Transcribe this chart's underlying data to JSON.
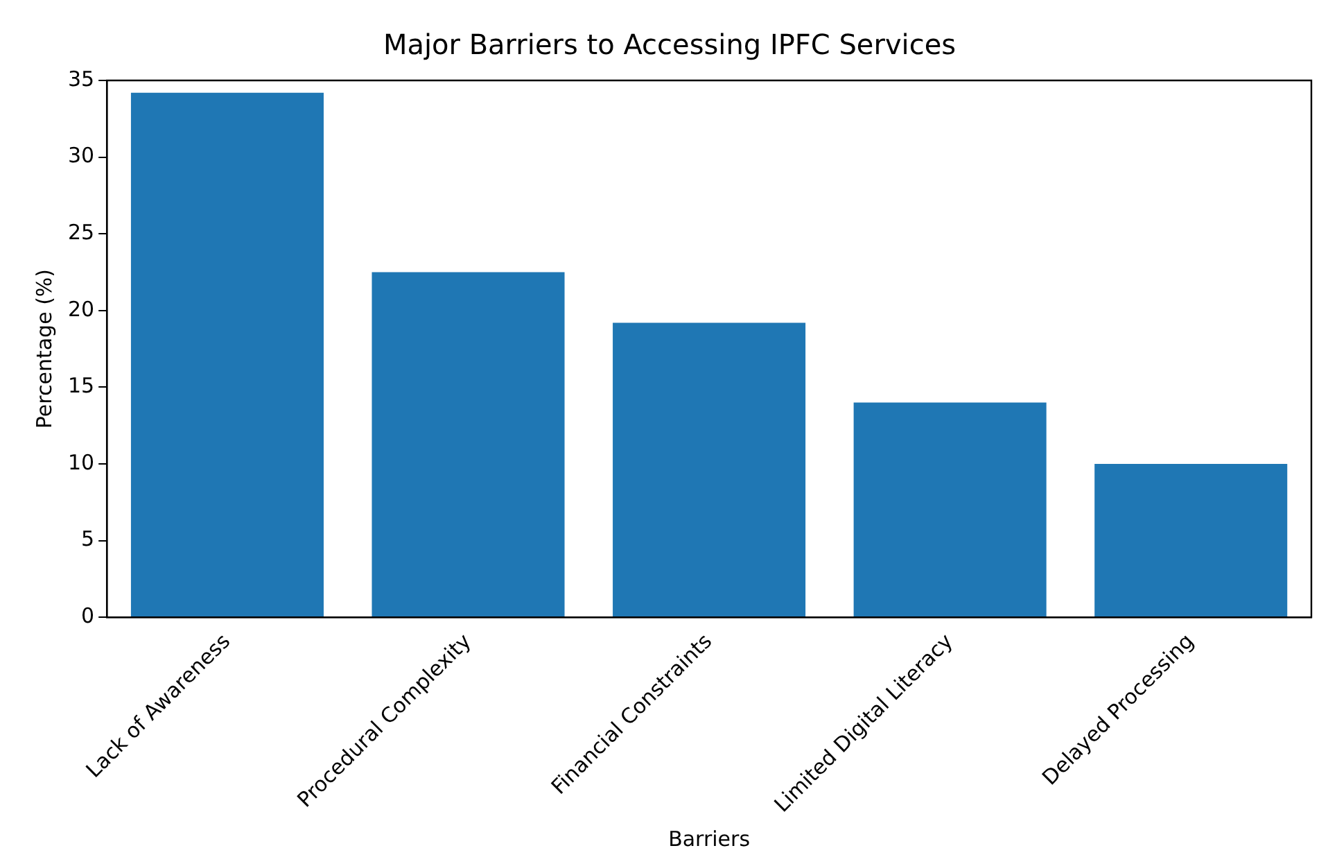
{
  "chart_data": {
    "type": "bar",
    "title": "Major Barriers to Accessing IPFC Services",
    "xlabel": "Barriers",
    "ylabel": "Percentage (%)",
    "categories": [
      "Lack of Awareness",
      "Procedural Complexity",
      "Financial Constraints",
      "Limited Digital Literacy",
      "Delayed Processing"
    ],
    "values": [
      34.2,
      22.5,
      19.2,
      14.0,
      10.0
    ],
    "color": "#1f77b4",
    "ylim": [
      0,
      35
    ],
    "yticks": [
      0,
      5,
      10,
      15,
      20,
      25,
      30,
      35
    ],
    "grid": false,
    "legend": false
  }
}
